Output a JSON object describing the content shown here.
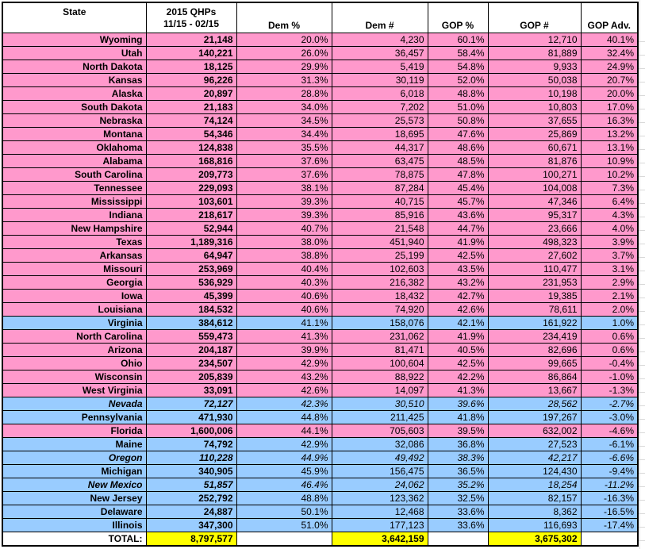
{
  "header": {
    "state": "State",
    "qhp_line1": "2015 QHPs",
    "qhp_line2": "11/15 - 02/15",
    "dem_pct": "Dem %",
    "dem_num": "Dem #",
    "gop_pct": "GOP %",
    "gop_num": "GOP #",
    "gop_adv": "GOP Adv."
  },
  "row_fields": [
    "state",
    "qhp",
    "dem_pct",
    "dem_num",
    "gop_pct",
    "gop_num",
    "gop_adv",
    "fill",
    "italic"
  ],
  "rows": [
    [
      "Wyoming",
      "21,148",
      "20.0%",
      "4,230",
      "60.1%",
      "12,710",
      "40.1%",
      "pink",
      false
    ],
    [
      "Utah",
      "140,221",
      "26.0%",
      "36,457",
      "58.4%",
      "81,889",
      "32.4%",
      "pink",
      false
    ],
    [
      "North Dakota",
      "18,125",
      "29.9%",
      "5,419",
      "54.8%",
      "9,933",
      "24.9%",
      "pink",
      false
    ],
    [
      "Kansas",
      "96,226",
      "31.3%",
      "30,119",
      "52.0%",
      "50,038",
      "20.7%",
      "pink",
      false
    ],
    [
      "Alaska",
      "20,897",
      "28.8%",
      "6,018",
      "48.8%",
      "10,198",
      "20.0%",
      "pink",
      false
    ],
    [
      "South Dakota",
      "21,183",
      "34.0%",
      "7,202",
      "51.0%",
      "10,803",
      "17.0%",
      "pink",
      false
    ],
    [
      "Nebraska",
      "74,124",
      "34.5%",
      "25,573",
      "50.8%",
      "37,655",
      "16.3%",
      "pink",
      false
    ],
    [
      "Montana",
      "54,346",
      "34.4%",
      "18,695",
      "47.6%",
      "25,869",
      "13.2%",
      "pink",
      false
    ],
    [
      "Oklahoma",
      "124,838",
      "35.5%",
      "44,317",
      "48.6%",
      "60,671",
      "13.1%",
      "pink",
      false
    ],
    [
      "Alabama",
      "168,816",
      "37.6%",
      "63,475",
      "48.5%",
      "81,876",
      "10.9%",
      "pink",
      false
    ],
    [
      "South Carolina",
      "209,773",
      "37.6%",
      "78,875",
      "47.8%",
      "100,271",
      "10.2%",
      "pink",
      false
    ],
    [
      "Tennessee",
      "229,093",
      "38.1%",
      "87,284",
      "45.4%",
      "104,008",
      "7.3%",
      "pink",
      false
    ],
    [
      "Mississippi",
      "103,601",
      "39.3%",
      "40,715",
      "45.7%",
      "47,346",
      "6.4%",
      "pink",
      false
    ],
    [
      "Indiana",
      "218,617",
      "39.3%",
      "85,916",
      "43.6%",
      "95,317",
      "4.3%",
      "pink",
      false
    ],
    [
      "New Hampshire",
      "52,944",
      "40.7%",
      "21,548",
      "44.7%",
      "23,666",
      "4.0%",
      "pink",
      false
    ],
    [
      "Texas",
      "1,189,316",
      "38.0%",
      "451,940",
      "41.9%",
      "498,323",
      "3.9%",
      "pink",
      false
    ],
    [
      "Arkansas",
      "64,947",
      "38.8%",
      "25,199",
      "42.5%",
      "27,602",
      "3.7%",
      "pink",
      false
    ],
    [
      "Missouri",
      "253,969",
      "40.4%",
      "102,603",
      "43.5%",
      "110,477",
      "3.1%",
      "pink",
      false
    ],
    [
      "Georgia",
      "536,929",
      "40.3%",
      "216,382",
      "43.2%",
      "231,953",
      "2.9%",
      "pink",
      false
    ],
    [
      "Iowa",
      "45,399",
      "40.6%",
      "18,432",
      "42.7%",
      "19,385",
      "2.1%",
      "pink",
      false
    ],
    [
      "Louisiana",
      "184,532",
      "40.6%",
      "74,920",
      "42.6%",
      "78,611",
      "2.0%",
      "pink",
      false
    ],
    [
      "Virginia",
      "384,612",
      "41.1%",
      "158,076",
      "42.1%",
      "161,922",
      "1.0%",
      "blue",
      false
    ],
    [
      "North Carolina",
      "559,473",
      "41.3%",
      "231,062",
      "41.9%",
      "234,419",
      "0.6%",
      "pink",
      false
    ],
    [
      "Arizona",
      "204,187",
      "39.9%",
      "81,471",
      "40.5%",
      "82,696",
      "0.6%",
      "pink",
      false
    ],
    [
      "Ohio",
      "234,507",
      "42.9%",
      "100,604",
      "42.5%",
      "99,665",
      "-0.4%",
      "pink",
      false
    ],
    [
      "Wisconsin",
      "205,839",
      "43.2%",
      "88,922",
      "42.2%",
      "86,864",
      "-1.0%",
      "pink",
      false
    ],
    [
      "West Virginia",
      "33,091",
      "42.6%",
      "14,097",
      "41.3%",
      "13,667",
      "-1.3%",
      "pink",
      false
    ],
    [
      "Nevada",
      "72,127",
      "42.3%",
      "30,510",
      "39.6%",
      "28,562",
      "-2.7%",
      "blue",
      true
    ],
    [
      "Pennsylvania",
      "471,930",
      "44.8%",
      "211,425",
      "41.8%",
      "197,267",
      "-3.0%",
      "blue",
      false
    ],
    [
      "Florida",
      "1,600,006",
      "44.1%",
      "705,603",
      "39.5%",
      "632,002",
      "-4.6%",
      "pink",
      false
    ],
    [
      "Maine",
      "74,792",
      "42.9%",
      "32,086",
      "36.8%",
      "27,523",
      "-6.1%",
      "blue",
      false
    ],
    [
      "Oregon",
      "110,228",
      "44.9%",
      "49,492",
      "38.3%",
      "42,217",
      "-6.6%",
      "blue",
      true
    ],
    [
      "Michigan",
      "340,905",
      "45.9%",
      "156,475",
      "36.5%",
      "124,430",
      "-9.4%",
      "blue",
      false
    ],
    [
      "New Mexico",
      "51,857",
      "46.4%",
      "24,062",
      "35.2%",
      "18,254",
      "-11.2%",
      "blue",
      true
    ],
    [
      "New Jersey",
      "252,792",
      "48.8%",
      "123,362",
      "32.5%",
      "82,157",
      "-16.3%",
      "blue",
      false
    ],
    [
      "Delaware",
      "24,887",
      "50.1%",
      "12,468",
      "33.6%",
      "8,362",
      "-16.5%",
      "blue",
      false
    ],
    [
      "Illinois",
      "347,300",
      "51.0%",
      "177,123",
      "33.6%",
      "116,693",
      "-17.4%",
      "blue",
      false
    ]
  ],
  "total_row": {
    "label": "TOTAL:",
    "qhp": "8,797,577",
    "dem_pct": "",
    "dem_num": "3,642,159",
    "gop_pct": "",
    "gop_num": "3,675,302",
    "gop_adv": ""
  },
  "colors": {
    "row_pink": "#FF99CC",
    "row_blue": "#99CCFF",
    "total_highlight": "#FFFF00",
    "border": "#000000",
    "gridline": "#D9D9D9"
  }
}
